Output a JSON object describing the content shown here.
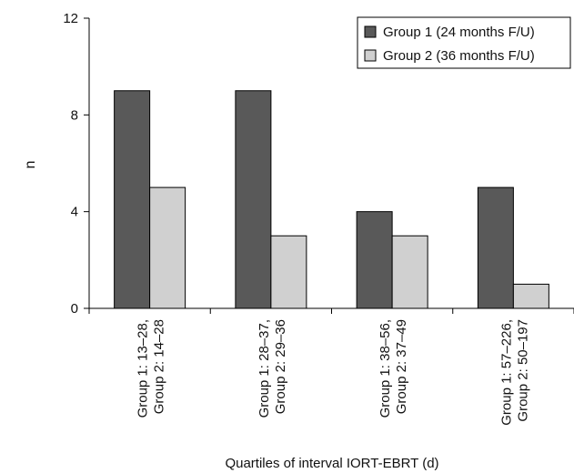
{
  "chart_data": {
    "type": "bar",
    "categories": [
      [
        "Group 1: 13–28,",
        "Group 2: 14–28"
      ],
      [
        "Group 1: 28–37,",
        "Group 2: 29–36"
      ],
      [
        "Group 1: 38–56,",
        "Group 2: 37–49"
      ],
      [
        "Group 1: 57–226,",
        "Group 2: 50–197"
      ]
    ],
    "series": [
      {
        "name": "Group 1 (24 months F/U)",
        "values": [
          9,
          9,
          4,
          5
        ],
        "color": "#595959"
      },
      {
        "name": "Group 2 (36 months F/U)",
        "values": [
          5,
          3,
          3,
          1
        ],
        "color": "#d0d0d0"
      }
    ],
    "xlabel": "Quartiles of interval IORT-EBRT (d)",
    "ylabel": "n",
    "ylim": [
      0,
      12
    ],
    "yticks": [
      0,
      4,
      8,
      12
    ],
    "grid": false,
    "legend_position": "top-right"
  }
}
